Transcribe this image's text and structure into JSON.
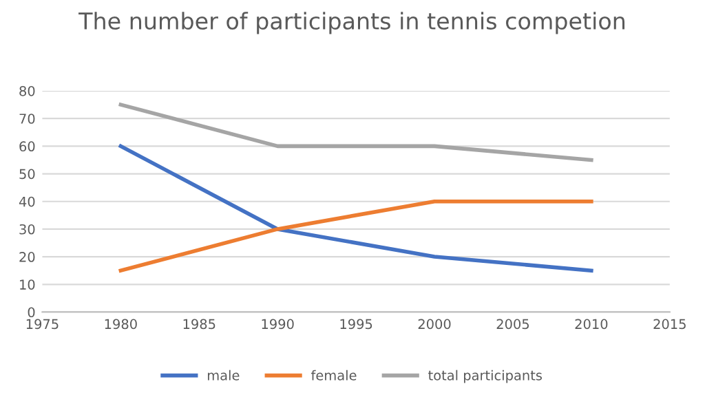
{
  "chart_data": {
    "type": "line",
    "title": "The number of participants in tennis competion",
    "x": [
      1980,
      1990,
      2000,
      2010
    ],
    "series": [
      {
        "name": "male",
        "color": "#4472c4",
        "values": [
          60,
          30,
          20,
          15
        ]
      },
      {
        "name": "female",
        "color": "#ed7d31",
        "values": [
          15,
          30,
          40,
          40
        ]
      },
      {
        "name": "total participants",
        "color": "#a5a5a5",
        "values": [
          75,
          60,
          60,
          55
        ]
      }
    ],
    "xlim": [
      1975,
      2015
    ],
    "xticks": [
      1975,
      1980,
      1985,
      1990,
      1995,
      2000,
      2005,
      2010,
      2015
    ],
    "ylim": [
      0,
      80
    ],
    "yticks": [
      0,
      10,
      20,
      30,
      40,
      50,
      60,
      70,
      80
    ],
    "grid": "y",
    "legend": "bottom",
    "marker": "none",
    "line_style": "solid"
  }
}
